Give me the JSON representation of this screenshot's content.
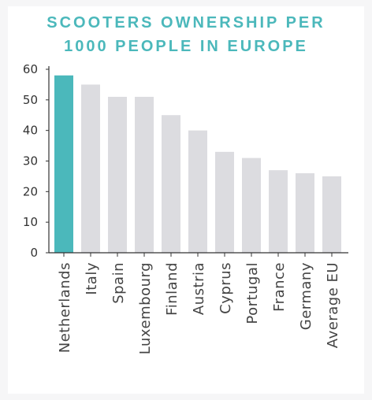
{
  "chart_data": {
    "type": "bar",
    "title_lines": [
      "SCOOTERS OWNERSHIP PER",
      "1000 PEOPLE IN EUROPE"
    ],
    "categories": [
      "Netherlands",
      "Italy",
      "Spain",
      "Luxembourg",
      "Finland",
      "Austria",
      "Cyprus",
      "Portugal",
      "France",
      "Germany",
      "Average EU"
    ],
    "values": [
      58,
      55,
      51,
      51,
      45,
      40,
      33,
      31,
      27,
      26,
      25
    ],
    "highlight_index": 0,
    "ylim": [
      0,
      60
    ],
    "yticks": [
      0,
      10,
      20,
      30,
      40,
      50,
      60
    ],
    "grid": false,
    "colors": {
      "highlight": "#4bb8bb",
      "default": "#dcdce0",
      "axis": "#333333",
      "title": "#4bb8bb"
    }
  }
}
